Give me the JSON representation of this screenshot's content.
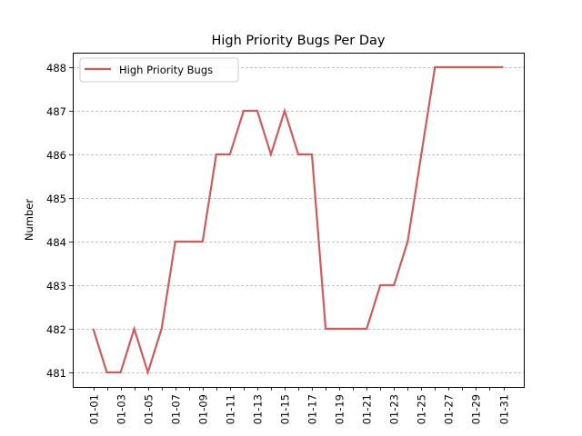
{
  "chart_data": {
    "type": "line",
    "title": "High Priority Bugs Per Day",
    "xlabel": "",
    "ylabel": "Number",
    "categories": [
      "01-01",
      "01-02",
      "01-03",
      "01-04",
      "01-05",
      "01-06",
      "01-07",
      "01-08",
      "01-09",
      "01-10",
      "01-11",
      "01-12",
      "01-13",
      "01-14",
      "01-15",
      "01-16",
      "01-17",
      "01-18",
      "01-19",
      "01-20",
      "01-21",
      "01-22",
      "01-23",
      "01-24",
      "01-25",
      "01-26",
      "01-27",
      "01-28",
      "01-29",
      "01-30",
      "01-31"
    ],
    "x_tick_labels": [
      "01-01",
      "01-03",
      "01-05",
      "01-07",
      "01-09",
      "01-11",
      "01-13",
      "01-15",
      "01-17",
      "01-19",
      "01-21",
      "01-23",
      "01-25",
      "01-27",
      "01-29",
      "01-31"
    ],
    "series": [
      {
        "name": "High Priority Bugs",
        "color": "#cd5c5c",
        "values": [
          482,
          481,
          481,
          482,
          481,
          482,
          484,
          484,
          484,
          486,
          486,
          487,
          487,
          486,
          487,
          486,
          486,
          482,
          482,
          482,
          482,
          483,
          483,
          484,
          486,
          488,
          488,
          488,
          488,
          488,
          488
        ]
      }
    ],
    "y_ticks": [
      481,
      482,
      483,
      484,
      485,
      486,
      487,
      488
    ],
    "ylim": [
      480.67,
      488.33
    ],
    "grid": {
      "axis": "y",
      "style": "dashed",
      "color": "#b0b0b0"
    },
    "legend": {
      "position": "upper left",
      "entries": [
        "High Priority Bugs"
      ]
    }
  }
}
